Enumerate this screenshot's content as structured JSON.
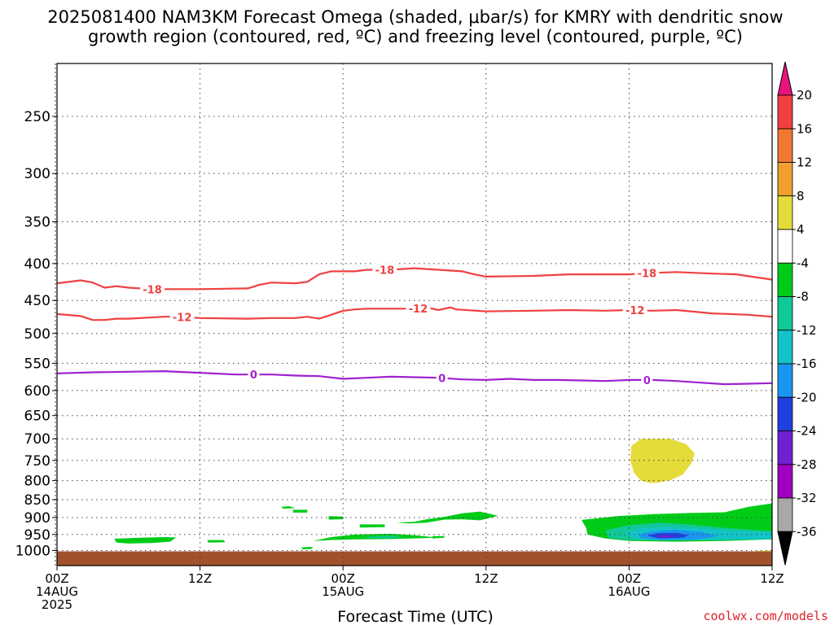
{
  "chart_data": {
    "type": "time-height cross section",
    "title_line1": "2025081400 NAM3KM Forecast Omega (shaded, μbar/s) for KMRY with dendritic snow",
    "title_line2": "growth region (contoured, red, ºC) and freezing level (contoured, purple, ºC)",
    "xlabel": "Forecast Time (UTC)",
    "credit": "coolwx.com/models",
    "x_hours_range": [
      0,
      60
    ],
    "y_axis": "pressure (hPa), reversed",
    "ylim": [
      1040,
      200
    ],
    "y_ticks": [
      "250",
      "300",
      "350",
      "400",
      "450",
      "500",
      "550",
      "600",
      "650",
      "700",
      "750",
      "800",
      "850",
      "900",
      "950",
      "1000"
    ],
    "x_ticks": [
      {
        "hour": 0,
        "lines": [
          "00Z",
          "14AUG",
          "2025"
        ]
      },
      {
        "hour": 12,
        "lines": [
          "12Z"
        ]
      },
      {
        "hour": 24,
        "lines": [
          "00Z",
          "15AUG"
        ]
      },
      {
        "hour": 36,
        "lines": [
          "12Z"
        ]
      },
      {
        "hour": 48,
        "lines": [
          "00Z",
          "16AUG"
        ]
      },
      {
        "hour": 60,
        "lines": [
          "12Z"
        ]
      }
    ],
    "grid": "dotted horizontal at y ticks, dotted vertical at 12h",
    "contours": [
      {
        "level": "-18",
        "color": "#f04040",
        "points": [
          [
            0,
            426
          ],
          [
            2,
            422
          ],
          [
            3,
            425
          ],
          [
            4,
            432
          ],
          [
            5,
            430
          ],
          [
            6,
            432
          ],
          [
            8,
            434
          ],
          [
            12,
            434
          ],
          [
            16,
            433
          ],
          [
            17,
            428
          ],
          [
            18,
            425
          ],
          [
            20,
            426
          ],
          [
            21,
            424
          ],
          [
            22,
            414
          ],
          [
            23,
            410
          ],
          [
            25,
            410
          ],
          [
            26,
            408
          ],
          [
            28,
            408
          ],
          [
            30,
            406
          ],
          [
            32,
            408
          ],
          [
            34,
            410
          ],
          [
            35,
            414
          ],
          [
            36,
            417
          ],
          [
            40,
            416
          ],
          [
            43,
            414
          ],
          [
            46,
            414
          ],
          [
            48,
            414
          ],
          [
            50,
            412
          ],
          [
            52,
            411
          ],
          [
            55,
            413
          ],
          [
            57,
            414
          ],
          [
            60,
            421
          ]
        ],
        "labels": [
          [
            8,
            "-18"
          ],
          [
            27.5,
            "-18"
          ],
          [
            49.5,
            "-18"
          ]
        ]
      },
      {
        "level": "-12",
        "color": "#f04040",
        "points": [
          [
            0,
            470
          ],
          [
            2,
            473
          ],
          [
            3,
            479
          ],
          [
            4,
            479
          ],
          [
            5,
            477
          ],
          [
            6,
            477
          ],
          [
            9,
            474
          ],
          [
            10,
            474
          ],
          [
            12,
            476
          ],
          [
            16,
            477
          ],
          [
            18,
            476
          ],
          [
            20,
            476
          ],
          [
            21,
            474
          ],
          [
            22,
            477
          ],
          [
            23,
            471
          ],
          [
            24,
            465
          ],
          [
            25,
            463
          ],
          [
            26,
            462
          ],
          [
            28,
            462
          ],
          [
            30,
            462
          ],
          [
            31,
            460
          ],
          [
            32,
            464
          ],
          [
            33,
            460
          ],
          [
            33.5,
            463
          ],
          [
            36,
            466
          ],
          [
            40,
            465
          ],
          [
            43,
            464
          ],
          [
            46,
            465
          ],
          [
            48,
            464
          ],
          [
            50,
            465
          ],
          [
            52,
            464
          ],
          [
            55,
            469
          ],
          [
            58,
            471
          ],
          [
            60,
            474
          ]
        ],
        "labels": [
          [
            10.5,
            "-12"
          ],
          [
            30.3,
            "-12"
          ],
          [
            48.5,
            "-12"
          ]
        ]
      },
      {
        "level": "0",
        "color": "#a020d0",
        "points": [
          [
            0,
            568
          ],
          [
            3,
            566
          ],
          [
            6,
            565
          ],
          [
            9,
            564
          ],
          [
            12,
            567
          ],
          [
            15,
            570
          ],
          [
            18,
            570
          ],
          [
            20,
            572
          ],
          [
            22,
            573
          ],
          [
            24,
            578
          ],
          [
            26,
            576
          ],
          [
            28,
            574
          ],
          [
            30,
            575
          ],
          [
            32,
            576
          ],
          [
            34,
            579
          ],
          [
            36,
            580
          ],
          [
            38,
            578
          ],
          [
            40,
            580
          ],
          [
            42,
            580
          ],
          [
            44,
            581
          ],
          [
            46,
            582
          ],
          [
            48,
            580
          ],
          [
            50,
            580
          ],
          [
            52,
            582
          ],
          [
            54,
            585
          ],
          [
            56,
            588
          ],
          [
            58,
            587
          ],
          [
            60,
            586
          ]
        ],
        "labels": [
          [
            16.5,
            "0"
          ],
          [
            32.3,
            "0"
          ],
          [
            49.5,
            "0"
          ]
        ]
      }
    ],
    "omega_regions": [
      {
        "value": "4 to 8",
        "color": "#e4dc3a",
        "points": [
          [
            48.2,
            716
          ],
          [
            49,
            700
          ],
          [
            51.5,
            700
          ],
          [
            52.8,
            712
          ],
          [
            53.5,
            734
          ],
          [
            53.2,
            758
          ],
          [
            52.5,
            785
          ],
          [
            51.5,
            798
          ],
          [
            50.5,
            805
          ],
          [
            49.8,
            806
          ],
          [
            49,
            800
          ],
          [
            48.4,
            780
          ],
          [
            48.1,
            750
          ]
        ]
      },
      {
        "value": "4 to 8",
        "color": "#e4dc3a",
        "points": [
          [
            56.5,
            1009
          ],
          [
            59,
            1001
          ],
          [
            60,
            1000
          ],
          [
            60,
            1012
          ],
          [
            56.5,
            1012
          ]
        ]
      },
      {
        "value": "-4 to -8",
        "color": "#00cc18",
        "points": [
          [
            4.8,
            963
          ],
          [
            7,
            960
          ],
          [
            9,
            958
          ],
          [
            10,
            959
          ],
          [
            9.5,
            972
          ],
          [
            8,
            976
          ],
          [
            6,
            978
          ],
          [
            5,
            975
          ]
        ]
      },
      {
        "value": "-4 to -8",
        "color": "#00cc18",
        "points": [
          [
            12.6,
            967
          ],
          [
            14,
            967
          ],
          [
            14.1,
            974
          ],
          [
            12.7,
            975
          ]
        ]
      },
      {
        "value": "-4 to -8",
        "color": "#00cc18",
        "points": [
          [
            18.8,
            870
          ],
          [
            19.5,
            868
          ],
          [
            20,
            873
          ],
          [
            19,
            875
          ]
        ]
      },
      {
        "value": "-4 to -8",
        "color": "#00cc18",
        "points": [
          [
            19.8,
            878
          ],
          [
            21,
            878
          ],
          [
            21,
            886
          ],
          [
            19.8,
            886
          ]
        ]
      },
      {
        "value": "-4 to -8",
        "color": "#00cc18",
        "points": [
          [
            22.8,
            896
          ],
          [
            24,
            897
          ],
          [
            24,
            905
          ],
          [
            22.8,
            906
          ]
        ]
      },
      {
        "value": "-4 to -8",
        "color": "#00cc18",
        "points": [
          [
            20.5,
            990
          ],
          [
            21.5,
            988
          ],
          [
            21.3,
            995
          ],
          [
            20.6,
            996
          ]
        ]
      },
      {
        "value": "-4 to -8",
        "color": "#00cc18",
        "points": [
          [
            25.4,
            920
          ],
          [
            27.5,
            920
          ],
          [
            27.5,
            928
          ],
          [
            25.4,
            929
          ]
        ]
      },
      {
        "value": "-4 to -8",
        "color": "#00cc18",
        "points": [
          [
            28.5,
            915
          ],
          [
            30,
            912
          ],
          [
            31,
            905
          ],
          [
            32.5,
            898
          ],
          [
            34,
            888
          ],
          [
            35.5,
            883
          ],
          [
            37,
            895
          ],
          [
            35.5,
            908
          ],
          [
            34,
            905
          ],
          [
            32.5,
            906
          ],
          [
            31,
            915
          ],
          [
            29.5,
            917
          ]
        ]
      },
      {
        "value": "-4 to -8",
        "color": "#00cc18",
        "points": [
          [
            31.5,
            955
          ],
          [
            32.5,
            955
          ],
          [
            32.5,
            960
          ],
          [
            31.5,
            962
          ]
        ]
      },
      {
        "value": "-4 to -8",
        "color": "#00cc18",
        "points": [
          [
            21.5,
            970
          ],
          [
            23,
            958
          ],
          [
            25,
            950
          ],
          [
            28,
            948
          ],
          [
            30,
            952
          ],
          [
            32,
            960
          ],
          [
            28,
            964
          ],
          [
            25,
            965
          ],
          [
            23,
            967
          ]
        ]
      },
      {
        "value": "-4 to -8",
        "color": "#00cc18",
        "points": [
          [
            44,
            907
          ],
          [
            47,
            896
          ],
          [
            50,
            890
          ],
          [
            53,
            887
          ],
          [
            56,
            885
          ],
          [
            58,
            870
          ],
          [
            60,
            860
          ],
          [
            60,
            965
          ],
          [
            56,
            970
          ],
          [
            52,
            972
          ],
          [
            48,
            970
          ],
          [
            46,
            962
          ],
          [
            44.5,
            950
          ],
          [
            44.4,
            930
          ]
        ]
      },
      {
        "value": "-8 to -12",
        "color": "#10c898",
        "points": [
          [
            46,
            938
          ],
          [
            48,
            922
          ],
          [
            50.5,
            915
          ],
          [
            53,
            920
          ],
          [
            56,
            930
          ],
          [
            59,
            938
          ],
          [
            60,
            940
          ],
          [
            60,
            965
          ],
          [
            54,
            968
          ],
          [
            48,
            968
          ],
          [
            46.3,
            960
          ]
        ]
      },
      {
        "value": "-8 to -12",
        "color": "#10c898",
        "points": [
          [
            26,
            957
          ],
          [
            28,
            953
          ],
          [
            29,
            957
          ],
          [
            28,
            961
          ],
          [
            26,
            961
          ]
        ]
      },
      {
        "value": "-12 to -16",
        "color": "#12c4c8",
        "points": [
          [
            47.5,
            946
          ],
          [
            49,
            932
          ],
          [
            51,
            927
          ],
          [
            54,
            932
          ],
          [
            57,
            940
          ],
          [
            60,
            944
          ],
          [
            60,
            962
          ],
          [
            56,
            966
          ],
          [
            52,
            967
          ],
          [
            48.5,
            962
          ]
        ]
      },
      {
        "value": "-16 to -20",
        "color": "#1a96f0",
        "points": [
          [
            48.8,
            950
          ],
          [
            50,
            940
          ],
          [
            52,
            936
          ],
          [
            54,
            942
          ],
          [
            55.5,
            955
          ],
          [
            53.5,
            966
          ],
          [
            50.5,
            967
          ],
          [
            49,
            961
          ]
        ]
      },
      {
        "value": "-20 to -24",
        "color": "#2040e0",
        "points": [
          [
            49.5,
            953
          ],
          [
            50.5,
            946
          ],
          [
            52,
            945
          ],
          [
            53,
            952
          ],
          [
            52.5,
            960
          ],
          [
            50.5,
            962
          ]
        ]
      },
      {
        "value": "-24 to -28",
        "color": "#7020d0",
        "points": [
          [
            50.2,
            954
          ],
          [
            51.2,
            952
          ],
          [
            51.8,
            957
          ],
          [
            50.8,
            960
          ]
        ]
      }
    ],
    "ground": {
      "color": "#a0522d",
      "from_p": 1000,
      "to_p": 1040
    },
    "colorbar": {
      "levels": [
        "20",
        "16",
        "12",
        "8",
        "4",
        "-4",
        "-8",
        "-12",
        "-16",
        "-20",
        "-24",
        "-28",
        "-32",
        "-36"
      ],
      "colors": [
        "#e8147c",
        "#f04040",
        "#f07830",
        "#f0a030",
        "#e8b020",
        "#e4dc3a",
        "#ffffff",
        "#00cc18",
        "#10c898",
        "#12c4c8",
        "#1a96f0",
        "#2040e0",
        "#7020d0",
        "#a000c0",
        "#a8a8a8",
        "#000000"
      ]
    }
  }
}
